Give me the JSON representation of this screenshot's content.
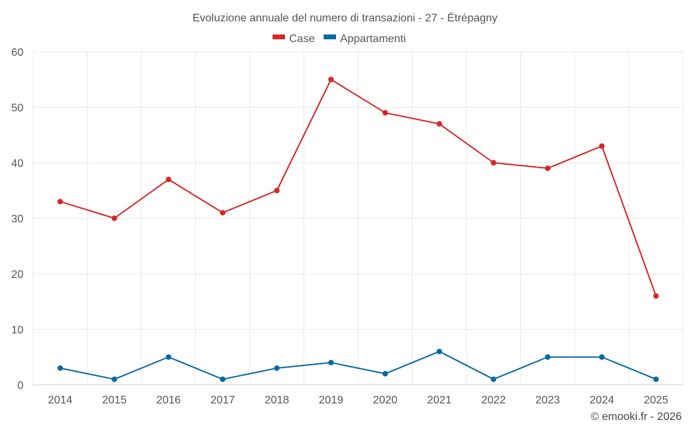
{
  "chart_data": {
    "type": "line",
    "title": "Evoluzione annuale del numero di transazioni - 27 - Étrépagny",
    "categories": [
      "2014",
      "2015",
      "2016",
      "2017",
      "2018",
      "2019",
      "2020",
      "2021",
      "2022",
      "2023",
      "2024",
      "2025"
    ],
    "series": [
      {
        "name": "Case",
        "color": "#d62728",
        "values": [
          33,
          30,
          37,
          31,
          35,
          55,
          49,
          47,
          40,
          39,
          43,
          16
        ]
      },
      {
        "name": "Appartamenti",
        "color": "#0b6aa2",
        "values": [
          3,
          1,
          5,
          1,
          3,
          4,
          2,
          6,
          1,
          5,
          5,
          1
        ]
      }
    ],
    "ylim": [
      0,
      60
    ],
    "yticks": [
      0,
      10,
      20,
      30,
      40,
      50,
      60
    ],
    "xlabel": "",
    "ylabel": "",
    "grid": true,
    "legend_position": "top-center"
  },
  "credit": "© emooki.fr - 2026"
}
